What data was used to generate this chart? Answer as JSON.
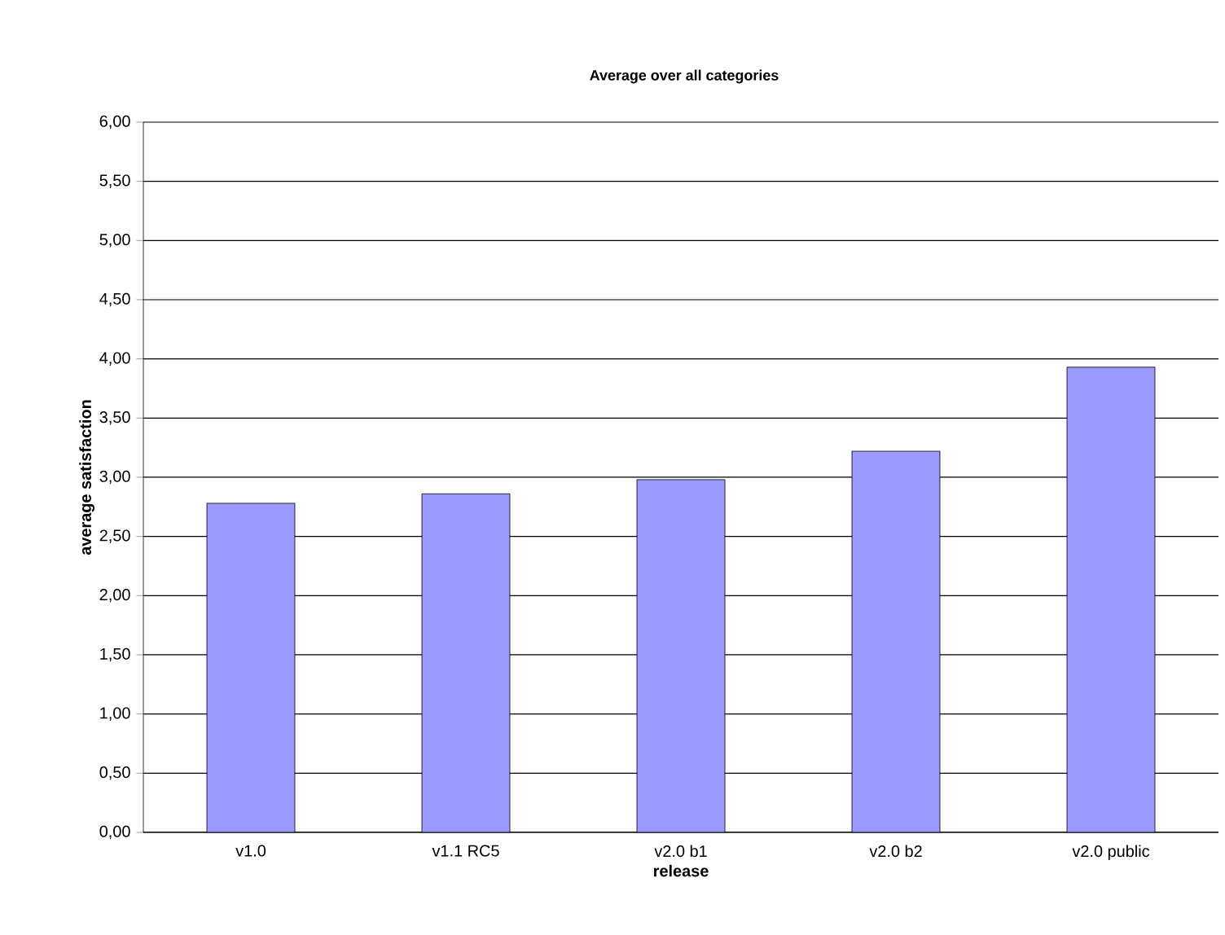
{
  "chart_data": {
    "type": "bar",
    "title": "Average over all categories",
    "xlabel": "release",
    "ylabel": "average satisfaction",
    "categories": [
      "v1.0",
      "v1.1 RC5",
      "v2.0 b1",
      "v2.0 b2",
      "v2.0 public"
    ],
    "values": [
      2.78,
      2.86,
      2.98,
      3.22,
      3.93
    ],
    "color": "#9999ff",
    "ylim": [
      0,
      6
    ],
    "yticks": [
      {
        "value": 0,
        "label": "0,00"
      },
      {
        "value": 0.5,
        "label": "0,50"
      },
      {
        "value": 1,
        "label": "1,00"
      },
      {
        "value": 1.5,
        "label": "1,50"
      },
      {
        "value": 2,
        "label": "2,00"
      },
      {
        "value": 2.5,
        "label": "2,50"
      },
      {
        "value": 3,
        "label": "3,00"
      },
      {
        "value": 3.5,
        "label": "3,50"
      },
      {
        "value": 4,
        "label": "4,00"
      },
      {
        "value": 4.5,
        "label": "4,50"
      },
      {
        "value": 5,
        "label": "5,00"
      },
      {
        "value": 5.5,
        "label": "5,50"
      },
      {
        "value": 6,
        "label": "6,00"
      }
    ],
    "grid": "y"
  }
}
